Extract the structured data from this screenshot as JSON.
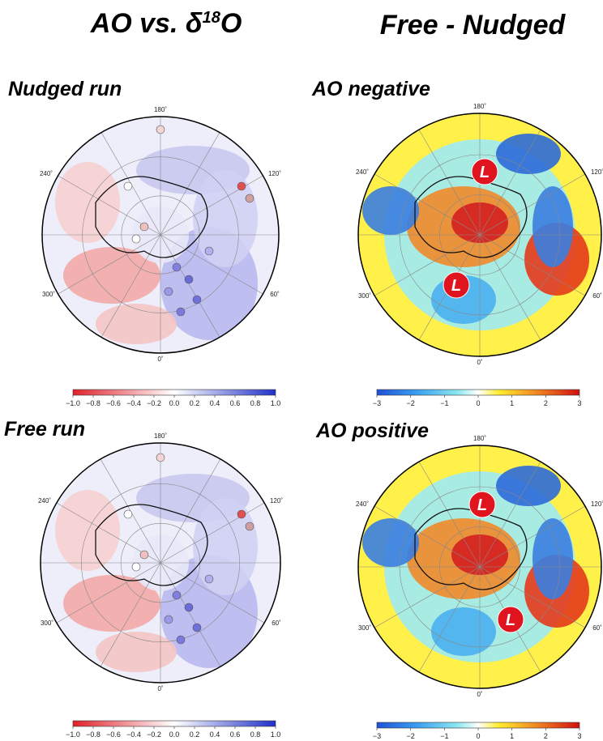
{
  "columns": [
    {
      "title": {
        "prefix": "AO vs. δ",
        "superscript": "18",
        "suffix": "O"
      }
    },
    {
      "title": {
        "prefix": "Free - Nudged"
      }
    }
  ],
  "panels": [
    {
      "label": "Nudged run",
      "longitudes": [
        "180˚",
        "240˚",
        "120˚",
        "300˚",
        "60˚",
        "0˚"
      ]
    },
    {
      "label": "AO negative",
      "longitudes": [
        "180˚",
        "240˚",
        "120˚",
        "300˚",
        "60˚",
        "0˚"
      ],
      "markers": [
        "L",
        "L"
      ]
    },
    {
      "label": "Free run",
      "longitudes": [
        "180˚",
        "240˚",
        "120˚",
        "300˚",
        "60˚",
        "0˚"
      ]
    },
    {
      "label": "AO positive",
      "longitudes": [
        "180˚",
        "240˚",
        "120˚",
        "300˚",
        "60˚",
        "0˚"
      ],
      "markers": [
        "L",
        "L"
      ]
    }
  ],
  "colorbars": [
    {
      "ticks": [
        "−1.0",
        "−0.8",
        "−0.6",
        "−0.4",
        "−0.2",
        "0.0",
        "0.2",
        "0.4",
        "0.6",
        "0.8",
        "1.0"
      ]
    },
    {
      "ticks": [
        "−3",
        "−2",
        "−1",
        "0",
        "1",
        "2",
        "3"
      ]
    },
    {
      "ticks": [
        "−1.0",
        "−0.8",
        "−0.6",
        "−0.4",
        "−0.2",
        "0.0",
        "0.2",
        "0.4",
        "0.6",
        "0.8",
        "1.0"
      ]
    },
    {
      "ticks": [
        "−3",
        "−2",
        "−1",
        "0",
        "1",
        "2",
        "3"
      ]
    }
  ]
}
